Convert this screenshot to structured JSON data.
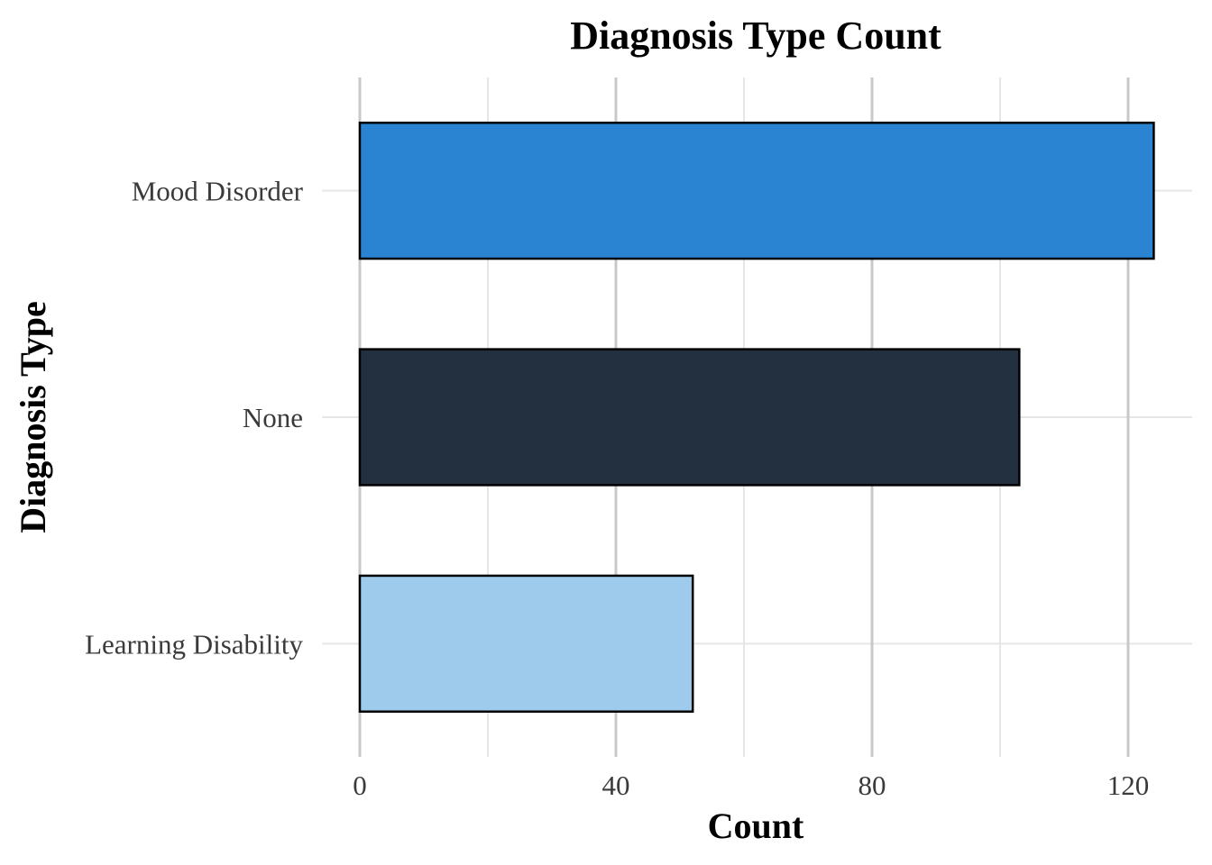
{
  "chart_data": {
    "type": "bar",
    "orientation": "horizontal",
    "title": "Diagnosis Type Count",
    "xlabel": "Count",
    "ylabel": "Diagnosis Type",
    "categories": [
      "Learning Disability",
      "None",
      "Mood Disorder"
    ],
    "values": [
      52,
      103,
      124
    ],
    "colors": [
      "#9ECBEC",
      "#233040",
      "#2B84D2"
    ],
    "xlim": [
      0,
      130
    ],
    "xticks": [
      0,
      40,
      80,
      120
    ],
    "xticks_minor": [
      20,
      60,
      100
    ],
    "grid": true,
    "legend": "none"
  }
}
